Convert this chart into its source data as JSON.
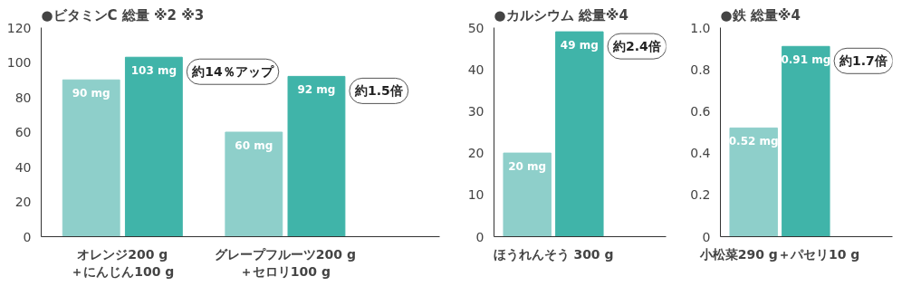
{
  "chart_data": [
    {
      "type": "bar",
      "title": "●ビタミンC 総量 ※2 ※3",
      "categories": [
        "オレンジ200 g\n＋にんじん100 g",
        "グレープフルーツ200 g\n＋セロリ100 g"
      ],
      "series": [
        {
          "color": "#8ecfca",
          "values": [
            90,
            60
          ],
          "value_labels": [
            "90 mg",
            "60 mg"
          ]
        },
        {
          "color": "#40b4a9",
          "values": [
            103,
            92
          ],
          "value_labels": [
            "103 mg",
            "92 mg"
          ]
        }
      ],
      "ylim": [
        0,
        120
      ],
      "yticks": [
        0,
        20,
        40,
        60,
        80,
        100,
        120
      ],
      "grid": false,
      "annotations": [
        "約14％アップ",
        "約1.5倍"
      ]
    },
    {
      "type": "bar",
      "title": "●カルシウム 総量※4",
      "categories": [
        "ほうれんそう 300 g"
      ],
      "series": [
        {
          "color": "#8ecfca",
          "values": [
            20
          ],
          "value_labels": [
            "20 mg"
          ]
        },
        {
          "color": "#40b4a9",
          "values": [
            49
          ],
          "value_labels": [
            "49 mg"
          ]
        }
      ],
      "ylim": [
        0,
        50
      ],
      "yticks": [
        0,
        10,
        20,
        30,
        40,
        50
      ],
      "grid": false,
      "annotations": [
        "約2.4倍"
      ]
    },
    {
      "type": "bar",
      "title": "●鉄 総量※4",
      "categories": [
        "小松菜290 g＋パセリ10 g"
      ],
      "series": [
        {
          "color": "#8ecfca",
          "values": [
            0.52
          ],
          "value_labels": [
            "0.52 mg"
          ]
        },
        {
          "color": "#40b4a9",
          "values": [
            0.91
          ],
          "value_labels": [
            "0.91 mg"
          ]
        }
      ],
      "ylim": [
        0,
        1.0
      ],
      "yticks": [
        0,
        0.2,
        0.4,
        0.6,
        0.8,
        {
          "value": 1,
          "label": "1.0"
        }
      ],
      "grid": false,
      "annotations": [
        "約1.7倍"
      ]
    }
  ]
}
